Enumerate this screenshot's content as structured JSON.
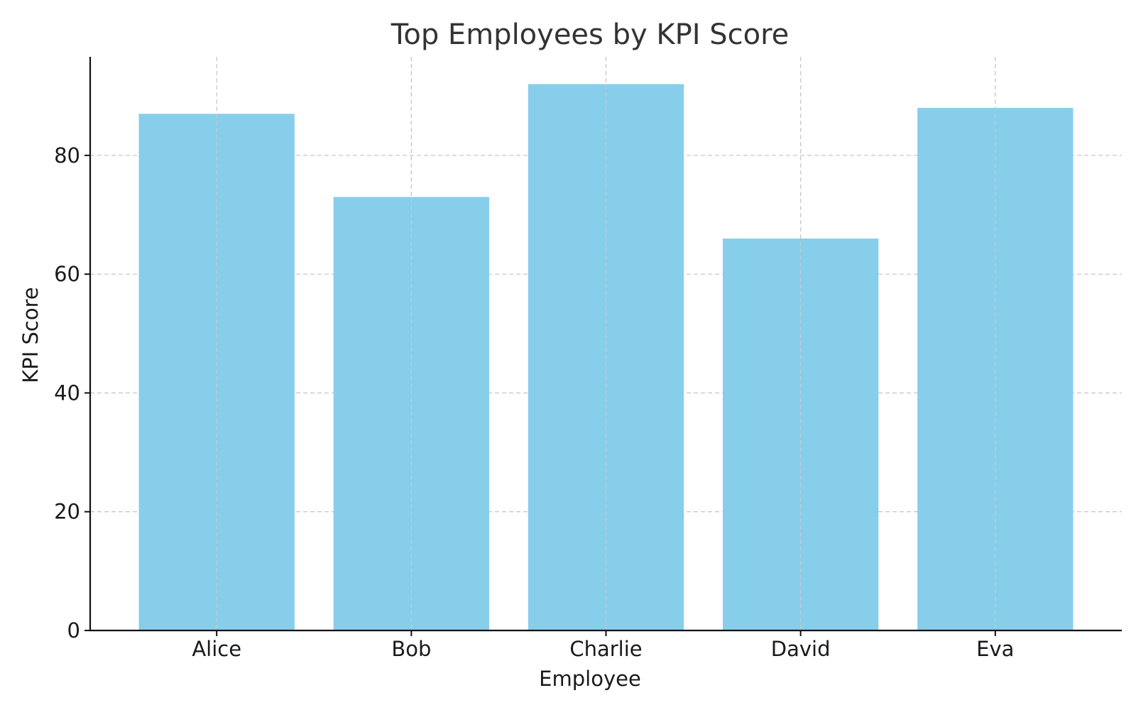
{
  "chart_data": {
    "type": "bar",
    "title": "Top Employees by KPI Score",
    "xlabel": "Employee",
    "ylabel": "KPI Score",
    "categories": [
      "Alice",
      "Bob",
      "Charlie",
      "David",
      "Eva"
    ],
    "values": [
      87,
      73,
      92,
      66,
      88
    ],
    "ylim": [
      0,
      96.6
    ],
    "yticks": [
      0,
      20,
      40,
      60,
      80
    ],
    "ytick_labels": [
      "0",
      "20",
      "40",
      "60",
      "80"
    ],
    "grid": true,
    "legend": null,
    "bar_color": "#87CEEB"
  }
}
